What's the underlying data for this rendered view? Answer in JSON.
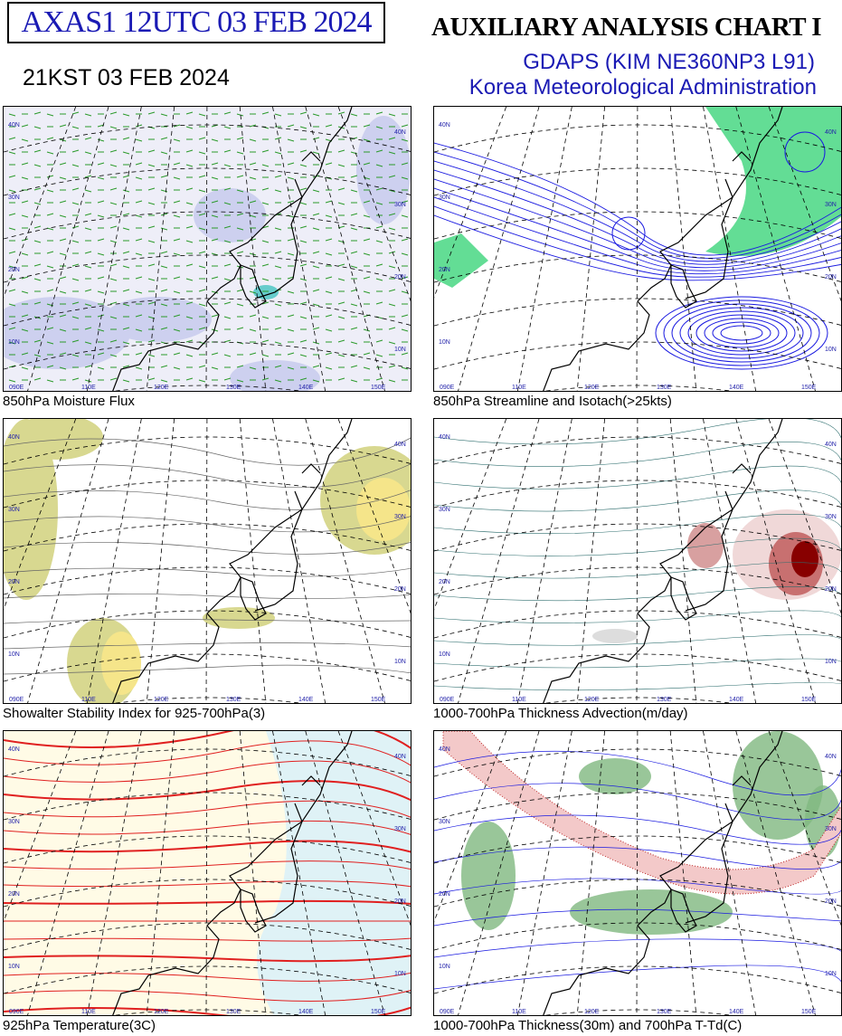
{
  "header": {
    "code": "AXAS1  12UTC 03 FEB 2024",
    "local_time": "21KST 03 FEB 2024",
    "title": "AUXILIARY ANALYSIS CHART  I",
    "model": "GDAPS (KIM NE360NP3 L91)",
    "agency": "Korea Meteorological Administration"
  },
  "map_grid": {
    "lat_labels": [
      "40N",
      "30N",
      "20N",
      "10N"
    ],
    "lon_labels": [
      "090E",
      "110E",
      "120E",
      "130E",
      "140E",
      "150E"
    ]
  },
  "panels": [
    {
      "caption": "850hPa Moisture Flux"
    },
    {
      "caption": "850hPa Streamline and Isotach(>25kts)"
    },
    {
      "caption": "Showalter Stability Index for 925-700hPa(3)"
    },
    {
      "caption": "1000-700hPa Thickness Advection(m/day)"
    },
    {
      "caption": "925hPa Temperature(3C)"
    },
    {
      "caption": "1000-700hPa Thickness(30m) and 700hPa T-Td(C)"
    }
  ]
}
